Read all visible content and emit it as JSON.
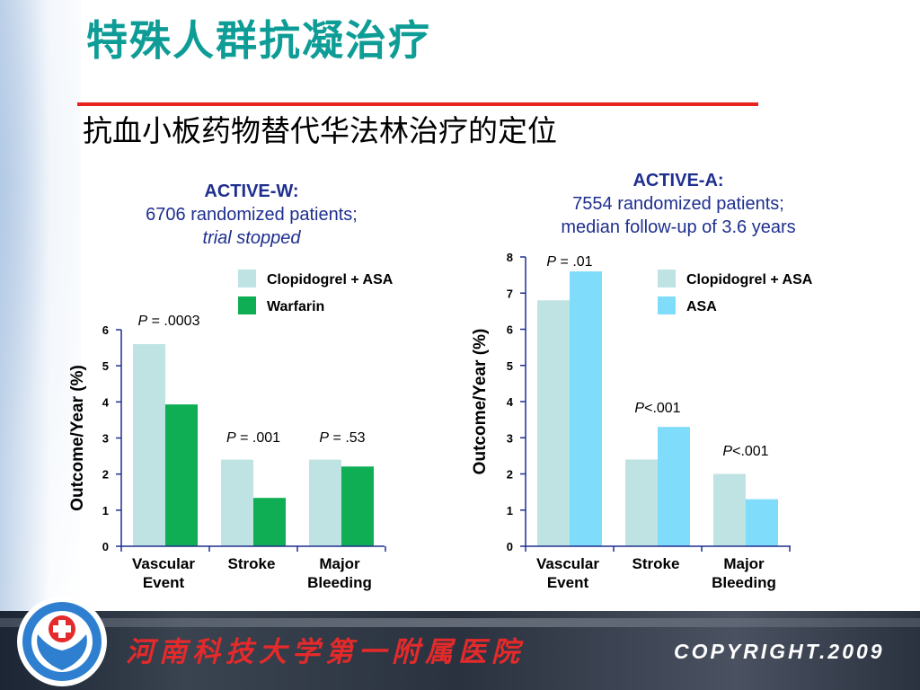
{
  "slide": {
    "title": "特殊人群抗凝治疗",
    "subtitle": "抗血小板药物替代华法林治疗的定位"
  },
  "footer": {
    "institution": "河南科技大学第一附属医院",
    "copyright": "COPYRIGHT.2009"
  },
  "colors": {
    "title": "#0e9d96",
    "rule": "#e8231d",
    "heading": "#1f2f8f",
    "clopidogrel": "#bfe2e3",
    "warfarin": "#0fae55",
    "asa": "#7fdcfb"
  },
  "chart_data": [
    {
      "type": "bar",
      "heading": {
        "line1": "ACTIVE-W:",
        "line2": "6706 randomized patients;",
        "line3": "trial stopped"
      },
      "ylabel": "Outcome/Year (%)",
      "ylim": [
        0,
        6
      ],
      "yticks": [
        "0",
        "1",
        "2",
        "3",
        "4",
        "5",
        "6"
      ],
      "categories": [
        [
          "Vascular",
          "Event"
        ],
        [
          "Stroke",
          ""
        ],
        [
          "Major",
          "Bleeding"
        ]
      ],
      "series": [
        {
          "name": "Clopidogrel + ASA",
          "color": "#bfe2e3",
          "values": [
            5.6,
            2.4,
            2.4
          ]
        },
        {
          "name": "Warfarin",
          "color": "#0fae55",
          "values": [
            3.93,
            1.34,
            2.21
          ]
        }
      ],
      "pvalues": [
        "= .0003",
        "= .001",
        "= .53"
      ],
      "legend": "top-right",
      "grid": false
    },
    {
      "type": "bar",
      "heading": {
        "line1": "ACTIVE-A:",
        "line2": "7554 randomized patients;",
        "line3": "median follow-up of 3.6 years"
      },
      "ylabel": "Outcome/Year (%)",
      "ylim": [
        0,
        8
      ],
      "yticks": [
        "0",
        "1",
        "2",
        "3",
        "4",
        "5",
        "6",
        "7",
        "8"
      ],
      "categories": [
        [
          "Vascular",
          "Event"
        ],
        [
          "Stroke",
          ""
        ],
        [
          "Major",
          "Bleeding"
        ]
      ],
      "series": [
        {
          "name": "Clopidogrel + ASA",
          "color": "#bfe2e3",
          "values": [
            6.8,
            2.4,
            2.0
          ]
        },
        {
          "name": "ASA",
          "color": "#7fdcfb",
          "values": [
            7.6,
            3.3,
            1.3
          ]
        }
      ],
      "pvalues": [
        "= .01",
        "<.001",
        "<.001"
      ],
      "legend": "top-right",
      "grid": false
    }
  ]
}
